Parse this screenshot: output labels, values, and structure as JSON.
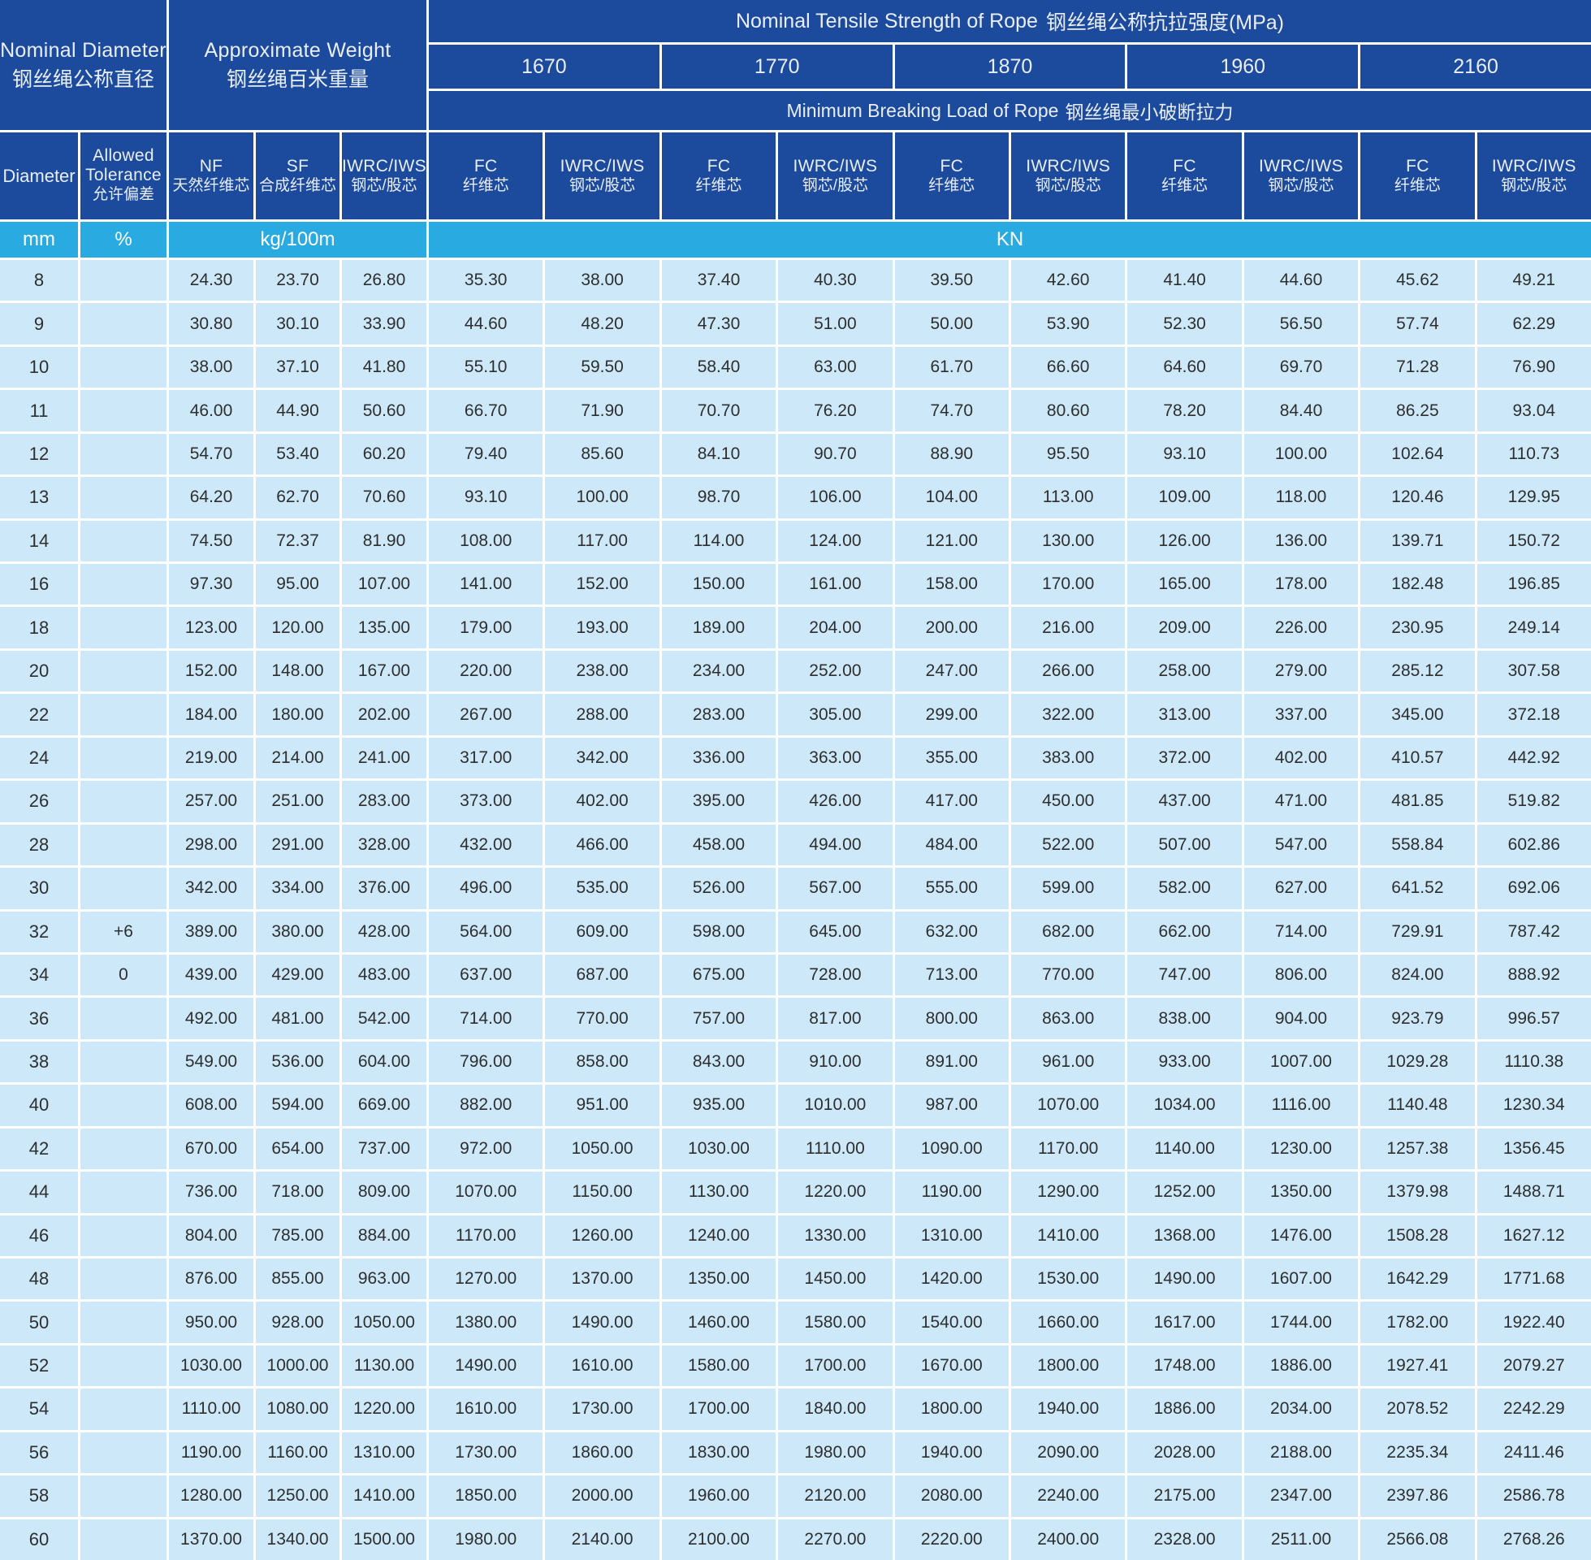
{
  "table": {
    "diameter_block": {
      "en": "Nominal Diameter",
      "zh": "钢丝绳公称直径"
    },
    "weight_block": {
      "en": "Approximate Weight",
      "zh": "钢丝绳百米重量"
    },
    "tensile_block": {
      "en": "Nominal Tensile Strength of Rope",
      "zh": "钢丝绳公称抗拉强度(MPa)"
    },
    "breaking_block": {
      "en": "Minimum Breaking Load of Rope",
      "zh": "钢丝绳最小破断拉力"
    },
    "strengths": [
      "1670",
      "1770",
      "1870",
      "1960",
      "2160"
    ],
    "columns": {
      "diameter": {
        "en": "Diameter",
        "zh": ""
      },
      "tolerance": {
        "en": "Allowed Tolerance",
        "zh": "允许偏差"
      },
      "nf": {
        "en": "NF",
        "zh": "天然纤维芯"
      },
      "sf": {
        "en": "SF",
        "zh": "合成纤维芯"
      },
      "iwrc": {
        "en": "IWRC/IWS",
        "zh": "钢芯/股芯"
      },
      "fc": {
        "en": "FC",
        "zh": "纤维芯"
      }
    },
    "units": {
      "diameter": "mm",
      "tolerance": "%",
      "weight": "kg/100m",
      "load": "KN"
    },
    "rows": [
      [
        "8",
        "",
        "24.30",
        "23.70",
        "26.80",
        "35.30",
        "38.00",
        "37.40",
        "40.30",
        "39.50",
        "42.60",
        "41.40",
        "44.60",
        "45.62",
        "49.21"
      ],
      [
        "9",
        "",
        "30.80",
        "30.10",
        "33.90",
        "44.60",
        "48.20",
        "47.30",
        "51.00",
        "50.00",
        "53.90",
        "52.30",
        "56.50",
        "57.74",
        "62.29"
      ],
      [
        "10",
        "",
        "38.00",
        "37.10",
        "41.80",
        "55.10",
        "59.50",
        "58.40",
        "63.00",
        "61.70",
        "66.60",
        "64.60",
        "69.70",
        "71.28",
        "76.90"
      ],
      [
        "11",
        "",
        "46.00",
        "44.90",
        "50.60",
        "66.70",
        "71.90",
        "70.70",
        "76.20",
        "74.70",
        "80.60",
        "78.20",
        "84.40",
        "86.25",
        "93.04"
      ],
      [
        "12",
        "",
        "54.70",
        "53.40",
        "60.20",
        "79.40",
        "85.60",
        "84.10",
        "90.70",
        "88.90",
        "95.50",
        "93.10",
        "100.00",
        "102.64",
        "110.73"
      ],
      [
        "13",
        "",
        "64.20",
        "62.70",
        "70.60",
        "93.10",
        "100.00",
        "98.70",
        "106.00",
        "104.00",
        "113.00",
        "109.00",
        "118.00",
        "120.46",
        "129.95"
      ],
      [
        "14",
        "",
        "74.50",
        "72.37",
        "81.90",
        "108.00",
        "117.00",
        "114.00",
        "124.00",
        "121.00",
        "130.00",
        "126.00",
        "136.00",
        "139.71",
        "150.72"
      ],
      [
        "16",
        "",
        "97.30",
        "95.00",
        "107.00",
        "141.00",
        "152.00",
        "150.00",
        "161.00",
        "158.00",
        "170.00",
        "165.00",
        "178.00",
        "182.48",
        "196.85"
      ],
      [
        "18",
        "",
        "123.00",
        "120.00",
        "135.00",
        "179.00",
        "193.00",
        "189.00",
        "204.00",
        "200.00",
        "216.00",
        "209.00",
        "226.00",
        "230.95",
        "249.14"
      ],
      [
        "20",
        "",
        "152.00",
        "148.00",
        "167.00",
        "220.00",
        "238.00",
        "234.00",
        "252.00",
        "247.00",
        "266.00",
        "258.00",
        "279.00",
        "285.12",
        "307.58"
      ],
      [
        "22",
        "",
        "184.00",
        "180.00",
        "202.00",
        "267.00",
        "288.00",
        "283.00",
        "305.00",
        "299.00",
        "322.00",
        "313.00",
        "337.00",
        "345.00",
        "372.18"
      ],
      [
        "24",
        "",
        "219.00",
        "214.00",
        "241.00",
        "317.00",
        "342.00",
        "336.00",
        "363.00",
        "355.00",
        "383.00",
        "372.00",
        "402.00",
        "410.57",
        "442.92"
      ],
      [
        "26",
        "",
        "257.00",
        "251.00",
        "283.00",
        "373.00",
        "402.00",
        "395.00",
        "426.00",
        "417.00",
        "450.00",
        "437.00",
        "471.00",
        "481.85",
        "519.82"
      ],
      [
        "28",
        "",
        "298.00",
        "291.00",
        "328.00",
        "432.00",
        "466.00",
        "458.00",
        "494.00",
        "484.00",
        "522.00",
        "507.00",
        "547.00",
        "558.84",
        "602.86"
      ],
      [
        "30",
        "",
        "342.00",
        "334.00",
        "376.00",
        "496.00",
        "535.00",
        "526.00",
        "567.00",
        "555.00",
        "599.00",
        "582.00",
        "627.00",
        "641.52",
        "692.06"
      ],
      [
        "32",
        "+6",
        "389.00",
        "380.00",
        "428.00",
        "564.00",
        "609.00",
        "598.00",
        "645.00",
        "632.00",
        "682.00",
        "662.00",
        "714.00",
        "729.91",
        "787.42"
      ],
      [
        "34",
        "0",
        "439.00",
        "429.00",
        "483.00",
        "637.00",
        "687.00",
        "675.00",
        "728.00",
        "713.00",
        "770.00",
        "747.00",
        "806.00",
        "824.00",
        "888.92"
      ],
      [
        "36",
        "",
        "492.00",
        "481.00",
        "542.00",
        "714.00",
        "770.00",
        "757.00",
        "817.00",
        "800.00",
        "863.00",
        "838.00",
        "904.00",
        "923.79",
        "996.57"
      ],
      [
        "38",
        "",
        "549.00",
        "536.00",
        "604.00",
        "796.00",
        "858.00",
        "843.00",
        "910.00",
        "891.00",
        "961.00",
        "933.00",
        "1007.00",
        "1029.28",
        "1110.38"
      ],
      [
        "40",
        "",
        "608.00",
        "594.00",
        "669.00",
        "882.00",
        "951.00",
        "935.00",
        "1010.00",
        "987.00",
        "1070.00",
        "1034.00",
        "1116.00",
        "1140.48",
        "1230.34"
      ],
      [
        "42",
        "",
        "670.00",
        "654.00",
        "737.00",
        "972.00",
        "1050.00",
        "1030.00",
        "1110.00",
        "1090.00",
        "1170.00",
        "1140.00",
        "1230.00",
        "1257.38",
        "1356.45"
      ],
      [
        "44",
        "",
        "736.00",
        "718.00",
        "809.00",
        "1070.00",
        "1150.00",
        "1130.00",
        "1220.00",
        "1190.00",
        "1290.00",
        "1252.00",
        "1350.00",
        "1379.98",
        "1488.71"
      ],
      [
        "46",
        "",
        "804.00",
        "785.00",
        "884.00",
        "1170.00",
        "1260.00",
        "1240.00",
        "1330.00",
        "1310.00",
        "1410.00",
        "1368.00",
        "1476.00",
        "1508.28",
        "1627.12"
      ],
      [
        "48",
        "",
        "876.00",
        "855.00",
        "963.00",
        "1270.00",
        "1370.00",
        "1350.00",
        "1450.00",
        "1420.00",
        "1530.00",
        "1490.00",
        "1607.00",
        "1642.29",
        "1771.68"
      ],
      [
        "50",
        "",
        "950.00",
        "928.00",
        "1050.00",
        "1380.00",
        "1490.00",
        "1460.00",
        "1580.00",
        "1540.00",
        "1660.00",
        "1617.00",
        "1744.00",
        "1782.00",
        "1922.40"
      ],
      [
        "52",
        "",
        "1030.00",
        "1000.00",
        "1130.00",
        "1490.00",
        "1610.00",
        "1580.00",
        "1700.00",
        "1670.00",
        "1800.00",
        "1748.00",
        "1886.00",
        "1927.41",
        "2079.27"
      ],
      [
        "54",
        "",
        "1110.00",
        "1080.00",
        "1220.00",
        "1610.00",
        "1730.00",
        "1700.00",
        "1840.00",
        "1800.00",
        "1940.00",
        "1886.00",
        "2034.00",
        "2078.52",
        "2242.29"
      ],
      [
        "56",
        "",
        "1190.00",
        "1160.00",
        "1310.00",
        "1730.00",
        "1860.00",
        "1830.00",
        "1980.00",
        "1940.00",
        "2090.00",
        "2028.00",
        "2188.00",
        "2235.34",
        "2411.46"
      ],
      [
        "58",
        "",
        "1280.00",
        "1250.00",
        "1410.00",
        "1850.00",
        "2000.00",
        "1960.00",
        "2120.00",
        "2080.00",
        "2240.00",
        "2175.00",
        "2347.00",
        "2397.86",
        "2586.78"
      ],
      [
        "60",
        "",
        "1370.00",
        "1340.00",
        "1500.00",
        "1980.00",
        "2140.00",
        "2100.00",
        "2270.00",
        "2220.00",
        "2400.00",
        "2328.00",
        "2511.00",
        "2566.08",
        "2768.26"
      ]
    ]
  },
  "colors": {
    "header_blue": "#1c4a9c",
    "units_cyan": "#29abe2",
    "row_light_blue": "#cde9f9",
    "grid_line": "#ffffff",
    "data_text": "#2e2e2e"
  }
}
